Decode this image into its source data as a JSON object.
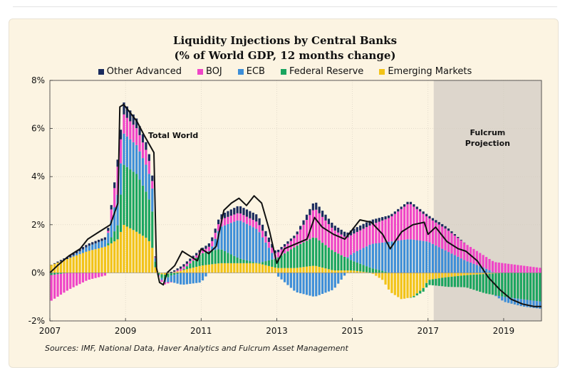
{
  "title_line1": "Liquidity Injections by Central Banks",
  "title_line2": "(% of World GDP, 12 months change)",
  "source": "Sources: IMF, National Data, Haver Analytics and Fulcrum Asset Management",
  "chart_data": {
    "type": "bar",
    "stacked": true,
    "xlim": [
      2007.0,
      2020.0
    ],
    "ylim": [
      -2,
      8
    ],
    "x_ticks": [
      {
        "value": 2007,
        "label": "2007"
      },
      {
        "value": 2009,
        "label": "2009"
      },
      {
        "value": 2011,
        "label": "2011"
      },
      {
        "value": 2013,
        "label": "2013"
      },
      {
        "value": 2015,
        "label": "2015"
      },
      {
        "value": 2017,
        "label": "2017"
      },
      {
        "value": 2019,
        "label": "2019"
      }
    ],
    "y_ticks": [
      {
        "value": -2,
        "label": "-2%"
      },
      {
        "value": 0,
        "label": "0%"
      },
      {
        "value": 2,
        "label": "2%"
      },
      {
        "value": 4,
        "label": "4%"
      },
      {
        "value": 6,
        "label": "6%"
      },
      {
        "value": 8,
        "label": "8%"
      }
    ],
    "legend_position": "top",
    "projection": {
      "start": 2017.15,
      "end": 2020.0,
      "label_line1": "Fulcrum",
      "label_line2": "Projection",
      "color": "#ddd6cc"
    },
    "annotation_total": {
      "text": "Total World",
      "x": 2009.6,
      "y": 5.6
    },
    "series": [
      {
        "name": "Emerging Markets",
        "color": "#f2c318",
        "points": [
          [
            2007.0,
            0.3
          ],
          [
            2007.5,
            0.6
          ],
          [
            2008.0,
            0.9
          ],
          [
            2008.5,
            1.1
          ],
          [
            2008.8,
            1.4
          ],
          [
            2008.95,
            2.0
          ],
          [
            2009.3,
            1.7
          ],
          [
            2009.6,
            1.4
          ],
          [
            2009.75,
            0.9
          ],
          [
            2009.8,
            0.1
          ],
          [
            2010.0,
            -0.1
          ],
          [
            2010.2,
            0.0
          ],
          [
            2010.5,
            0.1
          ],
          [
            2011.0,
            0.3
          ],
          [
            2011.5,
            0.4
          ],
          [
            2012.0,
            0.4
          ],
          [
            2012.5,
            0.4
          ],
          [
            2013.0,
            0.2
          ],
          [
            2013.5,
            0.2
          ],
          [
            2014.0,
            0.3
          ],
          [
            2014.5,
            0.1
          ],
          [
            2015.0,
            0.1
          ],
          [
            2015.5,
            0.0
          ],
          [
            2015.8,
            -0.3
          ],
          [
            2016.0,
            -0.8
          ],
          [
            2016.3,
            -1.1
          ],
          [
            2016.6,
            -1.0
          ],
          [
            2016.9,
            -0.6
          ],
          [
            2017.0,
            -0.3
          ],
          [
            2017.4,
            -0.2
          ],
          [
            2018.0,
            -0.1
          ],
          [
            2019.0,
            0.0
          ],
          [
            2020.0,
            0.0
          ]
        ]
      },
      {
        "name": "Federal Reserve",
        "color": "#1aa55f",
        "points": [
          [
            2007.0,
            -0.1
          ],
          [
            2007.5,
            0.0
          ],
          [
            2008.0,
            0.0
          ],
          [
            2008.5,
            0.0
          ],
          [
            2008.8,
            0.6
          ],
          [
            2008.95,
            2.5
          ],
          [
            2009.3,
            2.4
          ],
          [
            2009.6,
            1.8
          ],
          [
            2009.75,
            1.4
          ],
          [
            2009.8,
            0.0
          ],
          [
            2010.0,
            -0.2
          ],
          [
            2010.5,
            0.0
          ],
          [
            2011.0,
            0.5
          ],
          [
            2011.5,
            0.6
          ],
          [
            2012.0,
            0.2
          ],
          [
            2012.5,
            0.0
          ],
          [
            2013.0,
            0.4
          ],
          [
            2013.5,
            0.9
          ],
          [
            2014.0,
            1.2
          ],
          [
            2014.5,
            0.8
          ],
          [
            2015.0,
            0.4
          ],
          [
            2015.5,
            0.2
          ],
          [
            2016.0,
            0.0
          ],
          [
            2016.5,
            0.0
          ],
          [
            2017.0,
            -0.2
          ],
          [
            2017.5,
            -0.4
          ],
          [
            2018.0,
            -0.5
          ],
          [
            2018.5,
            -0.8
          ],
          [
            2019.0,
            -1.0
          ],
          [
            2019.5,
            -1.1
          ],
          [
            2020.0,
            -1.2
          ]
        ]
      },
      {
        "name": "ECB",
        "color": "#3d8ed8",
        "points": [
          [
            2007.0,
            0.0
          ],
          [
            2007.5,
            0.0
          ],
          [
            2008.0,
            0.2
          ],
          [
            2008.5,
            0.3
          ],
          [
            2008.8,
            1.3
          ],
          [
            2008.95,
            1.3
          ],
          [
            2009.3,
            1.2
          ],
          [
            2009.6,
            1.1
          ],
          [
            2009.75,
            0.9
          ],
          [
            2009.8,
            0.0
          ],
          [
            2010.0,
            -0.1
          ],
          [
            2010.5,
            -0.5
          ],
          [
            2011.0,
            -0.4
          ],
          [
            2011.3,
            0.2
          ],
          [
            2011.5,
            0.9
          ],
          [
            2012.0,
            1.6
          ],
          [
            2012.5,
            1.4
          ],
          [
            2013.0,
            -0.1
          ],
          [
            2013.5,
            -0.8
          ],
          [
            2014.0,
            -1.0
          ],
          [
            2014.5,
            -0.7
          ],
          [
            2015.0,
            0.3
          ],
          [
            2015.5,
            1.0
          ],
          [
            2016.0,
            1.3
          ],
          [
            2016.5,
            1.4
          ],
          [
            2017.0,
            1.3
          ],
          [
            2017.5,
            0.9
          ],
          [
            2018.0,
            0.5
          ],
          [
            2018.5,
            0.2
          ],
          [
            2019.0,
            -0.2
          ],
          [
            2019.5,
            -0.3
          ],
          [
            2020.0,
            -0.3
          ]
        ]
      },
      {
        "name": "BOJ",
        "color": "#ef45c7",
        "points": [
          [
            2007.0,
            -1.1
          ],
          [
            2007.5,
            -0.7
          ],
          [
            2008.0,
            -0.3
          ],
          [
            2008.5,
            -0.1
          ],
          [
            2008.8,
            1.2
          ],
          [
            2008.95,
            0.8
          ],
          [
            2009.3,
            0.7
          ],
          [
            2009.6,
            0.6
          ],
          [
            2009.75,
            0.2
          ],
          [
            2009.8,
            0.0
          ],
          [
            2010.0,
            -0.1
          ],
          [
            2010.5,
            0.1
          ],
          [
            2011.0,
            0.1
          ],
          [
            2011.5,
            0.3
          ],
          [
            2012.0,
            0.3
          ],
          [
            2012.5,
            0.3
          ],
          [
            2013.0,
            0.2
          ],
          [
            2013.5,
            0.4
          ],
          [
            2014.0,
            1.2
          ],
          [
            2014.5,
            0.9
          ],
          [
            2015.0,
            0.8
          ],
          [
            2015.5,
            0.8
          ],
          [
            2016.0,
            1.0
          ],
          [
            2016.5,
            1.5
          ],
          [
            2017.0,
            1.0
          ],
          [
            2017.5,
            0.9
          ],
          [
            2018.0,
            0.7
          ],
          [
            2018.5,
            0.5
          ],
          [
            2019.0,
            0.4
          ],
          [
            2019.5,
            0.3
          ],
          [
            2020.0,
            0.2
          ]
        ]
      },
      {
        "name": "Other Advanced",
        "color": "#1a2b5e",
        "points": [
          [
            2007.0,
            0.0
          ],
          [
            2007.5,
            0.1
          ],
          [
            2008.0,
            0.1
          ],
          [
            2008.5,
            0.1
          ],
          [
            2008.8,
            0.3
          ],
          [
            2008.95,
            0.5
          ],
          [
            2009.3,
            0.4
          ],
          [
            2009.6,
            0.3
          ],
          [
            2009.75,
            0.2
          ],
          [
            2009.8,
            0.0
          ],
          [
            2010.0,
            0.0
          ],
          [
            2010.5,
            0.1
          ],
          [
            2011.0,
            0.1
          ],
          [
            2011.5,
            0.2
          ],
          [
            2012.0,
            0.3
          ],
          [
            2012.5,
            0.3
          ],
          [
            2013.0,
            0.1
          ],
          [
            2013.5,
            0.1
          ],
          [
            2014.0,
            0.3
          ],
          [
            2014.5,
            0.2
          ],
          [
            2015.0,
            0.2
          ],
          [
            2015.5,
            0.2
          ],
          [
            2016.0,
            0.1
          ],
          [
            2016.5,
            0.1
          ],
          [
            2017.0,
            0.1
          ],
          [
            2017.5,
            0.1
          ],
          [
            2018.0,
            0.0
          ],
          [
            2019.0,
            0.0
          ],
          [
            2020.0,
            0.0
          ]
        ]
      }
    ],
    "total_line": {
      "name": "Total World",
      "color": "#111111",
      "points": [
        [
          2007.0,
          0.0
        ],
        [
          2007.2,
          0.3
        ],
        [
          2007.5,
          0.7
        ],
        [
          2007.8,
          1.0
        ],
        [
          2008.0,
          1.4
        ],
        [
          2008.3,
          1.7
        ],
        [
          2008.6,
          2.0
        ],
        [
          2008.8,
          2.9
        ],
        [
          2008.85,
          6.9
        ],
        [
          2008.95,
          7.0
        ],
        [
          2009.1,
          6.7
        ],
        [
          2009.3,
          6.3
        ],
        [
          2009.5,
          5.7
        ],
        [
          2009.75,
          5.0
        ],
        [
          2009.82,
          0.2
        ],
        [
          2009.9,
          -0.4
        ],
        [
          2010.0,
          -0.5
        ],
        [
          2010.1,
          0.0
        ],
        [
          2010.3,
          0.3
        ],
        [
          2010.5,
          0.9
        ],
        [
          2010.7,
          0.7
        ],
        [
          2010.9,
          0.5
        ],
        [
          2011.0,
          1.0
        ],
        [
          2011.2,
          0.8
        ],
        [
          2011.4,
          1.1
        ],
        [
          2011.6,
          2.6
        ],
        [
          2011.8,
          2.9
        ],
        [
          2012.0,
          3.1
        ],
        [
          2012.2,
          2.8
        ],
        [
          2012.4,
          3.2
        ],
        [
          2012.6,
          2.9
        ],
        [
          2012.8,
          1.8
        ],
        [
          2013.0,
          0.4
        ],
        [
          2013.2,
          1.0
        ],
        [
          2013.5,
          1.2
        ],
        [
          2013.8,
          1.4
        ],
        [
          2014.0,
          2.3
        ],
        [
          2014.2,
          1.9
        ],
        [
          2014.5,
          1.6
        ],
        [
          2014.8,
          1.4
        ],
        [
          2015.0,
          1.8
        ],
        [
          2015.2,
          2.2
        ],
        [
          2015.5,
          2.1
        ],
        [
          2015.8,
          1.6
        ],
        [
          2016.0,
          1.0
        ],
        [
          2016.3,
          1.7
        ],
        [
          2016.6,
          2.0
        ],
        [
          2016.9,
          2.1
        ],
        [
          2017.0,
          1.6
        ],
        [
          2017.2,
          1.9
        ],
        [
          2017.5,
          1.3
        ],
        [
          2017.8,
          1.0
        ],
        [
          2018.0,
          0.9
        ],
        [
          2018.3,
          0.5
        ],
        [
          2018.6,
          -0.2
        ],
        [
          2018.9,
          -0.7
        ],
        [
          2019.2,
          -1.1
        ],
        [
          2019.5,
          -1.3
        ],
        [
          2019.8,
          -1.4
        ],
        [
          2020.0,
          -1.4
        ]
      ]
    }
  }
}
